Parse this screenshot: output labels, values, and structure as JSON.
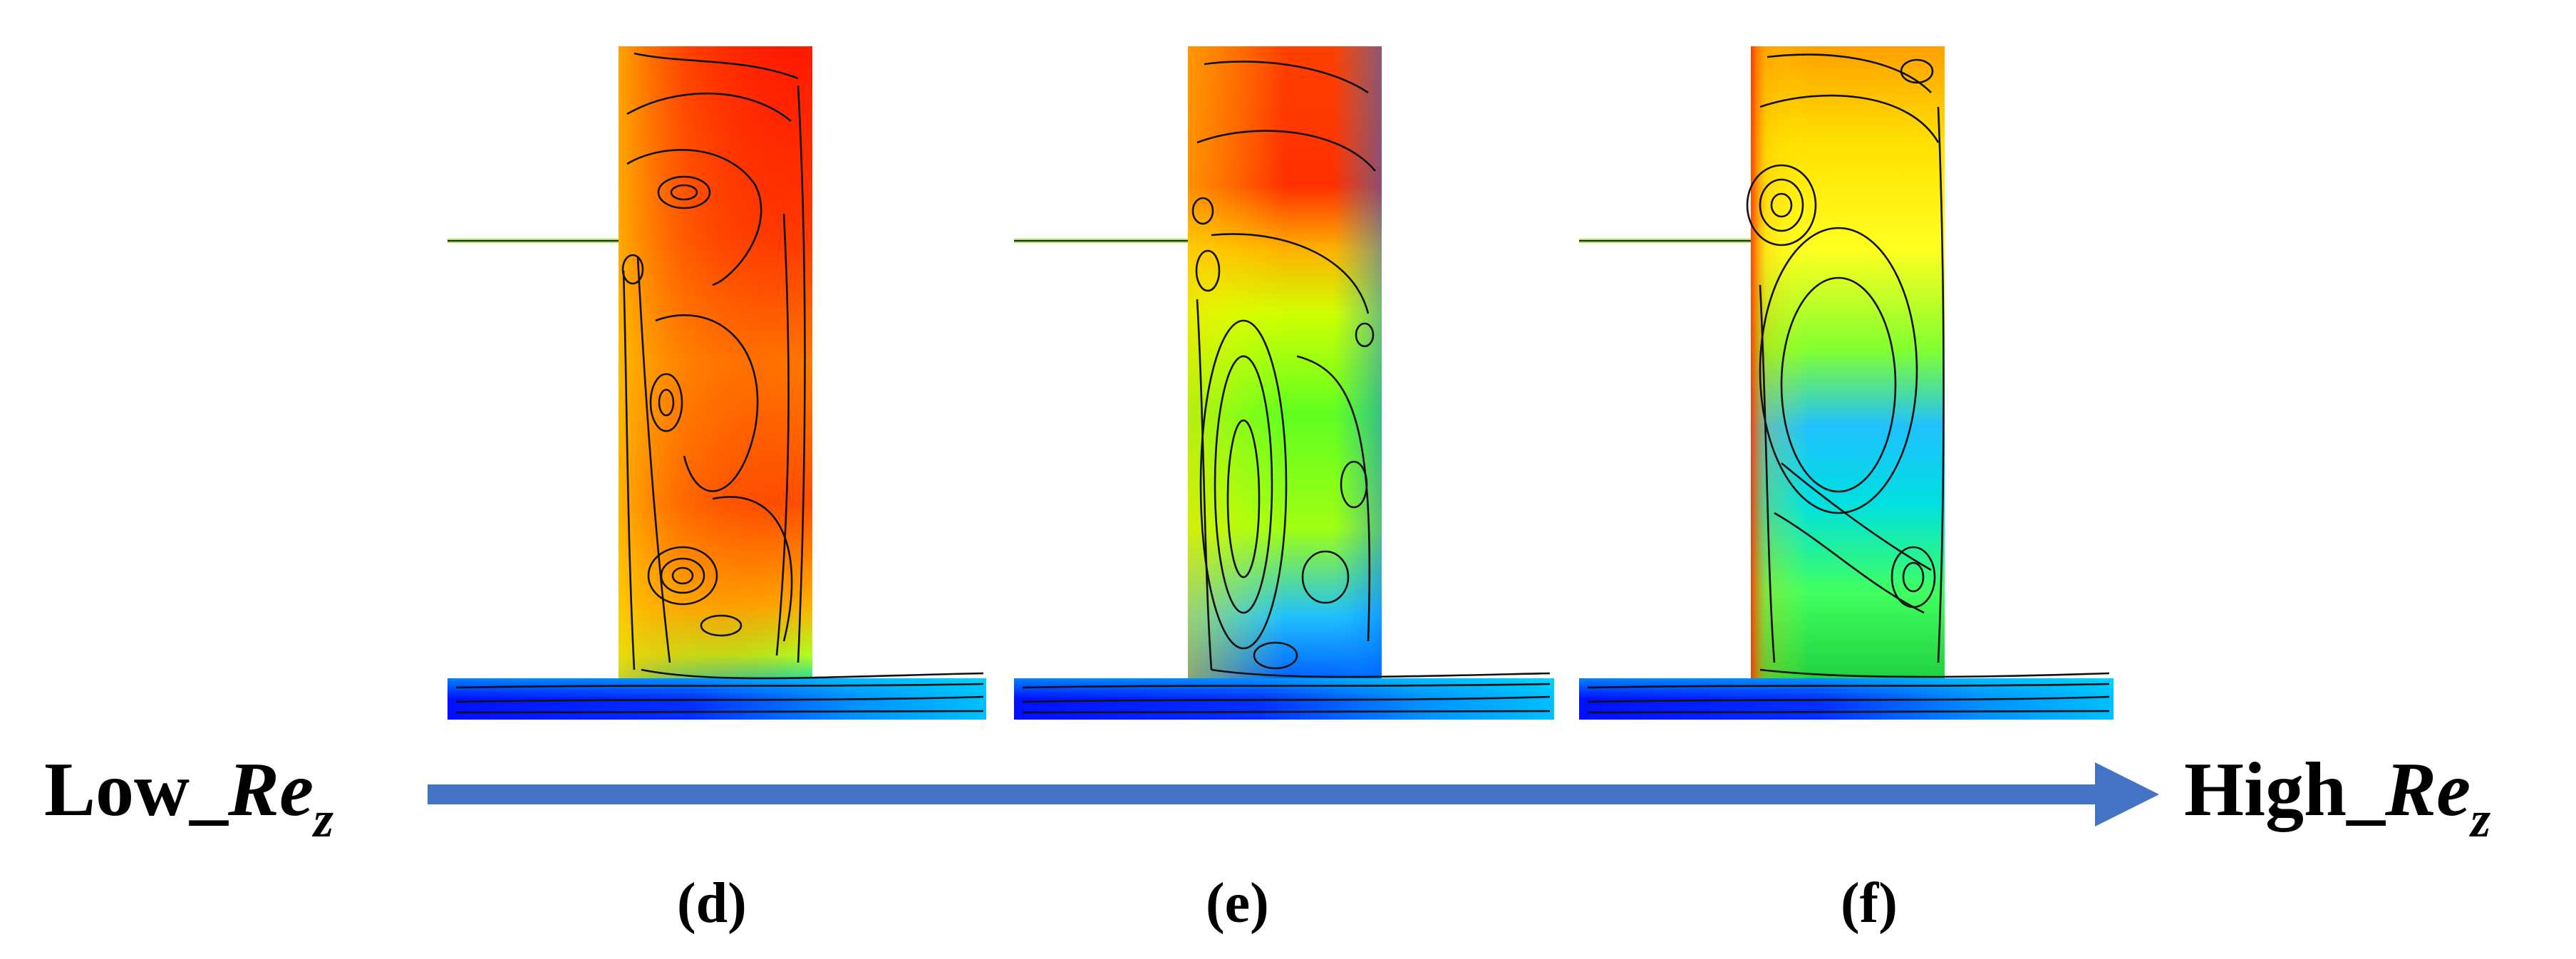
{
  "axis": {
    "low": {
      "prefix": "Low_",
      "var": "Re",
      "sub": "z"
    },
    "high": {
      "prefix": "High_",
      "var": "Re",
      "sub": "z"
    },
    "arrow_color": "#4472C4"
  },
  "panels": [
    {
      "caption": "(d)",
      "field": "mostly-red"
    },
    {
      "caption": "(e)",
      "field": "red-to-green"
    },
    {
      "caption": "(f)",
      "field": "yellow-to-blue"
    }
  ],
  "colormap": [
    "#0000ff",
    "#00a0ff",
    "#00e0c0",
    "#30ff30",
    "#a0ff00",
    "#ffff00",
    "#ffb000",
    "#ff6000",
    "#ff0000"
  ]
}
